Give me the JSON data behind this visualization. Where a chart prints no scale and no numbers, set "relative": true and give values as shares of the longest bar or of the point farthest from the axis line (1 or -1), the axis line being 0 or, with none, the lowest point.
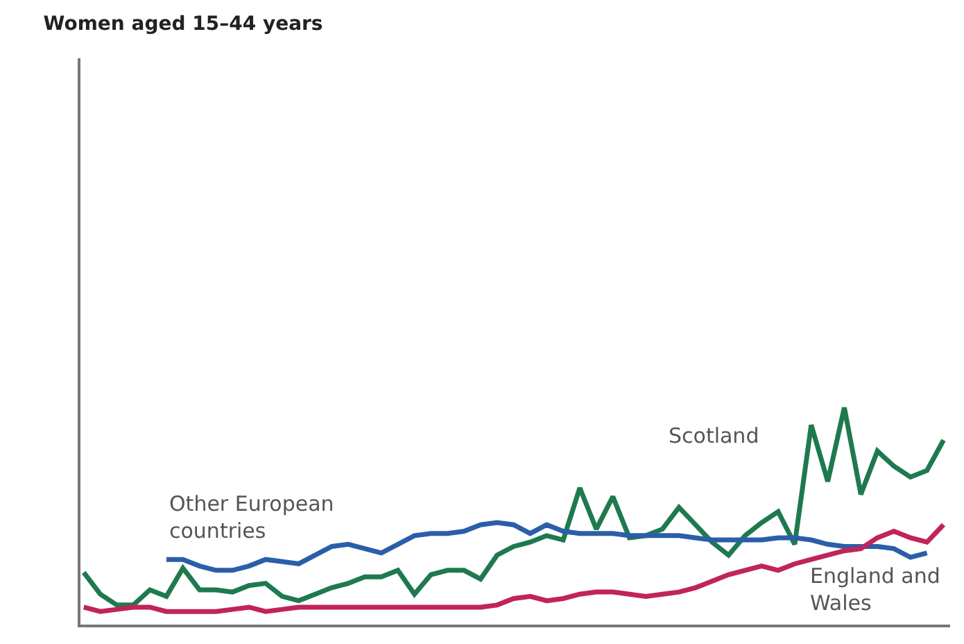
{
  "chart_data": {
    "type": "line",
    "title": "Women aged 15–44 years",
    "relative": true,
    "legend": false,
    "categories": [
      null,
      null,
      null,
      null,
      null,
      null,
      null,
      null,
      null,
      null,
      null,
      null,
      null,
      null,
      null,
      null,
      null,
      null,
      null,
      null,
      null,
      null,
      null,
      null,
      null,
      null,
      null,
      null,
      null,
      null,
      null,
      null,
      null,
      null,
      null,
      null,
      null,
      null,
      null,
      null,
      null,
      null,
      null,
      null,
      null,
      null,
      null,
      null,
      null,
      null,
      null,
      null,
      null
    ],
    "series": [
      {
        "name": "Scotland",
        "color": "#1e7a4e",
        "values": [
          0.24,
          0.14,
          0.09,
          0.09,
          0.16,
          0.13,
          0.26,
          0.16,
          0.16,
          0.15,
          0.18,
          0.19,
          0.13,
          0.11,
          0.14,
          0.17,
          0.19,
          0.22,
          0.22,
          0.25,
          0.14,
          0.23,
          0.25,
          0.25,
          0.21,
          0.32,
          0.36,
          0.38,
          0.41,
          0.39,
          0.63,
          0.44,
          0.59,
          0.4,
          0.41,
          0.44,
          0.54,
          0.46,
          0.38,
          0.32,
          0.41,
          0.47,
          0.52,
          0.37,
          0.92,
          0.66,
          1,
          0.6,
          0.8,
          0.73,
          0.68,
          0.71,
          0.85
        ]
      },
      {
        "name": "Other European countries",
        "color": "#2a5ea8",
        "values": [
          null,
          null,
          null,
          null,
          null,
          0.3,
          0.3,
          0.27,
          0.25,
          0.25,
          0.27,
          0.3,
          0.29,
          0.28,
          0.32,
          0.36,
          0.37,
          0.35,
          0.33,
          0.37,
          0.41,
          0.42,
          0.42,
          0.43,
          0.46,
          0.47,
          0.46,
          0.42,
          0.46,
          0.43,
          0.42,
          0.42,
          0.42,
          0.41,
          0.41,
          0.41,
          0.41,
          0.4,
          0.39,
          0.39,
          0.39,
          0.39,
          0.4,
          0.4,
          0.39,
          0.37,
          0.36,
          0.36,
          0.36,
          0.35,
          0.31,
          0.33,
          null
        ]
      },
      {
        "name": "England and Wales",
        "color": "#c0245a",
        "values": [
          0.08,
          0.06,
          0.07,
          0.08,
          0.08,
          0.06,
          0.06,
          0.06,
          0.06,
          0.07,
          0.08,
          0.06,
          0.07,
          0.08,
          0.08,
          0.08,
          0.08,
          0.08,
          0.08,
          0.08,
          0.08,
          0.08,
          0.08,
          0.08,
          0.08,
          0.09,
          0.12,
          0.13,
          0.11,
          0.12,
          0.14,
          0.15,
          0.15,
          0.14,
          0.13,
          0.14,
          0.15,
          0.17,
          0.2,
          0.23,
          0.25,
          0.27,
          0.25,
          0.28,
          0.3,
          0.32,
          0.34,
          0.35,
          0.4,
          0.43,
          0.4,
          0.38,
          0.46
        ]
      }
    ]
  }
}
